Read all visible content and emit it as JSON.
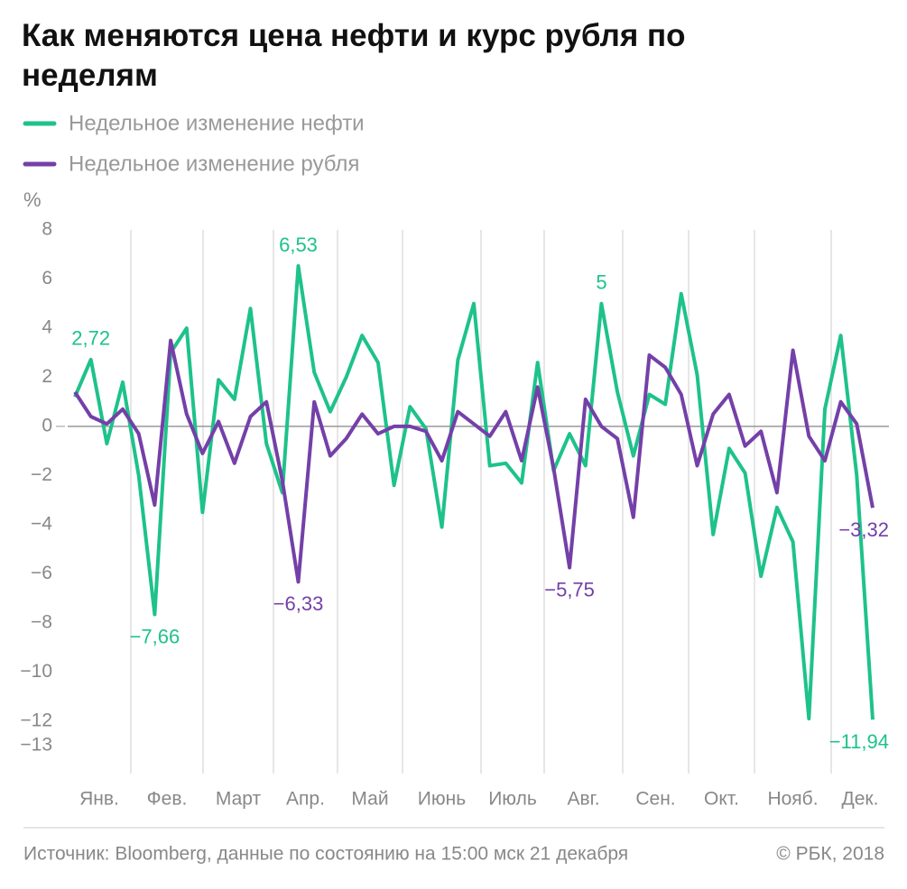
{
  "chart_data": {
    "type": "line",
    "title": "Как меняются цена нефти и курс рубля по неделям",
    "y_label": "%",
    "source": "Источник: Bloomberg, данные по состоянию на 15:00 мск 21 декабря",
    "credit": "© РБК, 2018",
    "months": [
      "Янв.",
      "Фев.",
      "Март",
      "Апр.",
      "Май",
      "Июнь",
      "Июль",
      "Авг.",
      "Сен.",
      "Окт.",
      "Нояб.",
      "Дек."
    ],
    "ylim": [
      -13,
      8
    ],
    "yticks": [
      8,
      6,
      4,
      2,
      0,
      {
        "value": -2,
        "label": "−2"
      },
      {
        "value": -4,
        "label": "−4"
      },
      {
        "value": -6,
        "label": "−6"
      },
      {
        "value": -8,
        "label": "−8"
      },
      {
        "value": -10,
        "label": "−10"
      },
      {
        "value": -12,
        "label": "−12"
      },
      {
        "value": -13,
        "label": "−13"
      }
    ],
    "series": [
      {
        "name": "Недельное изменение нефти",
        "color": "#1ec28b",
        "values": [
          1.2,
          2.72,
          -0.7,
          1.8,
          -2,
          -7.66,
          3,
          4,
          -3.5,
          1.9,
          1.1,
          4.8,
          -0.7,
          -2.7,
          6.53,
          2.2,
          0.6,
          2,
          3.7,
          2.6,
          -2.4,
          0.8,
          -0.1,
          -4.1,
          2.7,
          5,
          -1.6,
          -1.5,
          -2.3,
          2.6,
          -1.8,
          -0.3,
          -1.6,
          5,
          1.4,
          -1.2,
          1.3,
          0.9,
          5.4,
          2.1,
          -4.4,
          -0.9,
          -1.9,
          -6.1,
          -3.3,
          -4.7,
          -11.9,
          0.7,
          3.7,
          -2,
          -11.94
        ],
        "value_labels": [
          null,
          "2,72",
          null,
          null,
          null,
          "−7,66",
          null,
          null,
          null,
          null,
          null,
          null,
          null,
          null,
          "6,53",
          null,
          null,
          null,
          null,
          null,
          null,
          null,
          null,
          null,
          null,
          null,
          null,
          null,
          null,
          null,
          null,
          null,
          null,
          "5",
          null,
          null,
          null,
          null,
          null,
          null,
          null,
          null,
          null,
          null,
          null,
          null,
          null,
          null,
          null,
          null,
          "−11,94"
        ]
      },
      {
        "name": "Недельное изменение рубля",
        "color": "#7440a8",
        "values": [
          1.4,
          0.4,
          0.1,
          0.7,
          -0.3,
          -3.2,
          3.5,
          0.5,
          -1.1,
          0.2,
          -1.5,
          0.4,
          1,
          -2.2,
          -6.33,
          1,
          -1.2,
          -0.5,
          0.5,
          -0.3,
          0,
          0,
          -0.2,
          -1.4,
          0.6,
          0.1,
          -0.4,
          0.6,
          -1.4,
          1.6,
          -1.7,
          -5.75,
          1.1,
          0,
          -0.5,
          -3.7,
          2.9,
          2.4,
          1.3,
          -1.6,
          0.5,
          1.3,
          -0.8,
          -0.2,
          -2.7,
          3.1,
          -0.4,
          -1.4,
          1,
          0.1,
          -3.32
        ],
        "value_labels": [
          null,
          null,
          null,
          null,
          null,
          null,
          null,
          null,
          null,
          null,
          null,
          null,
          null,
          null,
          "−6,33",
          null,
          null,
          null,
          null,
          null,
          null,
          null,
          null,
          null,
          null,
          null,
          null,
          null,
          null,
          null,
          null,
          "−5,75",
          null,
          null,
          null,
          null,
          null,
          null,
          null,
          null,
          null,
          null,
          null,
          null,
          null,
          null,
          null,
          null,
          null,
          null,
          "−3,32"
        ]
      }
    ]
  }
}
